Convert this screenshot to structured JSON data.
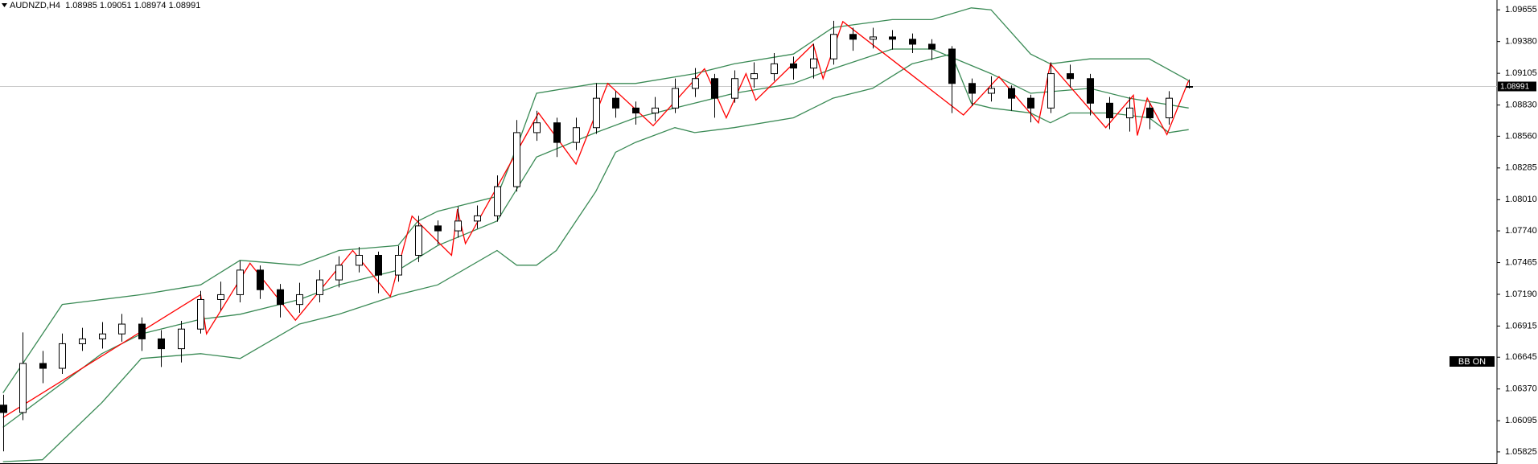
{
  "chart_data": {
    "type": "candlestick",
    "symbol": "AUDNZD,H4",
    "indicator_label": "BB ON",
    "candle_color": "#000000",
    "categories": [
      null,
      null,
      null,
      null,
      null,
      null,
      null,
      null,
      null,
      null,
      null,
      null,
      null,
      null,
      null,
      null,
      null,
      null,
      null,
      null,
      null,
      null,
      null,
      null,
      null,
      null,
      null,
      null,
      null,
      null,
      null,
      null,
      null,
      null,
      null,
      null,
      null,
      null,
      null,
      null,
      null,
      null,
      null,
      null,
      null,
      null,
      null,
      null,
      null,
      null,
      null,
      null,
      null,
      null,
      null,
      null,
      null,
      null,
      null,
      null,
      null
    ],
    "open": [
      1.0623,
      1.06166,
      1.06591,
      1.06549,
      1.06762,
      1.06804,
      1.06847,
      1.06932,
      1.06804,
      1.06719,
      1.06889,
      1.07145,
      1.07187,
      1.074,
      1.0723,
      1.07102,
      1.07187,
      1.07315,
      1.07442,
      1.07528,
      1.07357,
      1.07528,
      1.07783,
      1.0774,
      1.07825,
      1.0787,
      1.08123,
      1.08591,
      1.08676,
      1.08506,
      1.08634,
      1.08889,
      1.08804,
      1.08761,
      1.08804,
      1.08974,
      1.09059,
      1.08889,
      1.09059,
      1.09102,
      1.09187,
      1.0915,
      1.0923,
      1.09442,
      1.094,
      1.0942,
      1.094,
      1.09357,
      1.09315,
      1.09017,
      1.08932,
      1.08974,
      1.08889,
      1.08804,
      1.09102,
      1.09059,
      1.08846,
      1.08719,
      1.08804,
      1.08719,
      1.08985
    ],
    "high": [
      1.0632,
      1.0686,
      1.067,
      1.0685,
      1.069,
      1.0695,
      1.0702,
      1.0699,
      1.0688,
      1.0696,
      1.0722,
      1.073,
      1.0748,
      1.0744,
      1.0728,
      1.0729,
      1.074,
      1.0752,
      1.076,
      1.0756,
      1.0761,
      1.0787,
      1.0783,
      1.0795,
      1.0796,
      1.0822,
      1.087,
      1.0878,
      1.0872,
      1.0872,
      1.0902,
      1.0895,
      1.0886,
      1.089,
      1.0906,
      1.0915,
      1.091,
      1.0913,
      1.092,
      1.0928,
      1.0925,
      1.0936,
      1.0956,
      1.095,
      1.095,
      1.0948,
      1.0945,
      1.094,
      1.0934,
      1.0906,
      1.0908,
      1.09,
      1.0892,
      1.092,
      1.0918,
      1.091,
      1.089,
      1.089,
      1.0885,
      1.0895,
      1.09051
    ],
    "low": [
      1.0583,
      1.061,
      1.0642,
      1.065,
      1.067,
      1.0672,
      1.0678,
      1.067,
      1.0656,
      1.066,
      1.0685,
      1.0705,
      1.0712,
      1.0715,
      1.0699,
      1.0703,
      1.0712,
      1.0725,
      1.0738,
      1.072,
      1.073,
      1.0747,
      1.0762,
      1.0768,
      1.0776,
      1.0782,
      1.0808,
      1.0852,
      1.0838,
      1.0844,
      1.0858,
      1.0872,
      1.0866,
      1.0869,
      1.0876,
      1.089,
      1.0872,
      1.0885,
      1.0898,
      1.0904,
      1.0905,
      1.0906,
      1.0918,
      1.093,
      1.0932,
      1.0931,
      1.0928,
      1.0922,
      1.0876,
      1.0882,
      1.0886,
      1.0878,
      1.0868,
      1.0876,
      1.0898,
      1.0874,
      1.0862,
      1.086,
      1.0862,
      1.0866,
      1.08974
    ],
    "close": [
      1.06166,
      1.06591,
      1.06549,
      1.06762,
      1.06804,
      1.06847,
      1.06932,
      1.06804,
      1.06719,
      1.06889,
      1.07145,
      1.07187,
      1.074,
      1.0723,
      1.07102,
      1.07187,
      1.07315,
      1.07442,
      1.07528,
      1.07357,
      1.07528,
      1.07783,
      1.0774,
      1.07825,
      1.0787,
      1.08123,
      1.08591,
      1.08676,
      1.08506,
      1.08634,
      1.08889,
      1.08804,
      1.08761,
      1.08804,
      1.08974,
      1.09059,
      1.08889,
      1.09059,
      1.09102,
      1.09187,
      1.0915,
      1.0923,
      1.09442,
      1.094,
      1.0942,
      1.094,
      1.09357,
      1.09315,
      1.09017,
      1.08932,
      1.08974,
      1.08889,
      1.08804,
      1.09102,
      1.09059,
      1.08846,
      1.08719,
      1.08804,
      1.08719,
      1.08889,
      1.08991
    ],
    "overlays": [
      {
        "type": "line",
        "color": "#3a8a55",
        "x": [
          0,
          1,
          3,
          5,
          7,
          10,
          12,
          15,
          17,
          20,
          21,
          22,
          25,
          26,
          27,
          30,
          32,
          35,
          37,
          40,
          42,
          45,
          47,
          49,
          50,
          52,
          53,
          55,
          58,
          60
        ],
        "values": [
          1.06336,
          1.06591,
          1.07102,
          1.07145,
          1.07187,
          1.07272,
          1.07485,
          1.07442,
          1.0757,
          1.07613,
          1.07825,
          1.0791,
          1.08038,
          1.08464,
          1.08932,
          1.09017,
          1.09017,
          1.09102,
          1.09187,
          1.09272,
          1.09502,
          1.0957,
          1.0957,
          1.09672,
          1.09655,
          1.09272,
          1.09187,
          1.0923,
          1.0923,
          1.09042
        ]
      },
      {
        "type": "line",
        "color": "#3a8a55",
        "x": [
          0,
          5,
          7,
          10,
          12,
          15,
          17,
          20,
          22,
          25,
          27,
          30,
          32,
          35,
          37,
          40,
          42,
          45,
          47,
          50,
          52,
          55,
          57,
          60
        ],
        "values": [
          1.06038,
          1.06676,
          1.06847,
          1.06974,
          1.07017,
          1.07145,
          1.07272,
          1.074,
          1.07613,
          1.07825,
          1.08379,
          1.08591,
          1.08719,
          1.08846,
          1.08932,
          1.09017,
          1.09144,
          1.09315,
          1.09315,
          1.09102,
          1.08932,
          1.08974,
          1.08889,
          1.08804
        ]
      },
      {
        "type": "line",
        "color": "#3a8a55",
        "x": [
          0,
          2,
          5,
          7,
          10,
          12,
          15,
          17,
          20,
          22,
          25,
          26,
          27,
          28,
          30,
          31,
          32,
          34,
          35,
          37,
          40,
          42,
          44,
          46,
          48,
          49,
          50,
          52,
          53,
          54,
          56,
          58,
          59,
          60
        ],
        "values": [
          1.0574,
          1.05757,
          1.06251,
          1.06634,
          1.06676,
          1.06634,
          1.06932,
          1.07017,
          1.07187,
          1.07272,
          1.0757,
          1.07442,
          1.07442,
          1.0757,
          1.08081,
          1.08421,
          1.08506,
          1.08634,
          1.08591,
          1.08634,
          1.08719,
          1.08889,
          1.08974,
          1.09187,
          1.09272,
          1.08846,
          1.08804,
          1.08761,
          1.08676,
          1.08761,
          1.08761,
          1.08719,
          1.08591,
          1.08617
        ]
      },
      {
        "type": "line",
        "color": "#ff0000",
        "x": [
          0,
          10,
          10.3,
          12.5,
          14.8,
          17.7,
          19.6,
          20.7,
          22.7,
          23,
          23.4,
          27.1,
          29,
          30.6,
          32.9,
          35.5,
          36.6,
          37.6,
          38.1,
          41,
          41.5,
          42.5,
          48.6,
          50.4,
          52.4,
          53,
          55.8,
          57.2,
          57.4,
          57.9,
          58.9,
          60
        ],
        "values": [
          1.06123,
          1.07187,
          1.06847,
          1.07459,
          1.06966,
          1.0757,
          1.0717,
          1.07868,
          1.07528,
          1.07928,
          1.0763,
          1.08761,
          1.08319,
          1.09017,
          1.08651,
          1.09144,
          1.08719,
          1.09102,
          1.08872,
          1.09357,
          1.09059,
          1.09553,
          1.08744,
          1.09076,
          1.08676,
          1.09187,
          1.08634,
          1.08915,
          1.08566,
          1.08889,
          1.08574,
          1.09042
        ]
      }
    ],
    "xlim": [
      -0.15,
      75.6
    ],
    "ylim": [
      1.0572,
      1.0974
    ],
    "yticks": [
      1.09655,
      {
        "value": 1.0938,
        "label": "1.09380"
      },
      1.09105,
      {
        "value": 1.0883,
        "label": "1.08830"
      },
      {
        "value": 1.0856,
        "label": "1.08560"
      },
      1.08285,
      {
        "value": 1.0801,
        "label": "1.08010"
      },
      {
        "value": 1.0774,
        "label": "1.07740"
      },
      1.07465,
      {
        "value": 1.0719,
        "label": "1.07190"
      },
      1.06915,
      1.06645,
      {
        "value": 1.0637,
        "label": "1.06370"
      },
      1.06095,
      1.05825
    ],
    "grid": false
  }
}
